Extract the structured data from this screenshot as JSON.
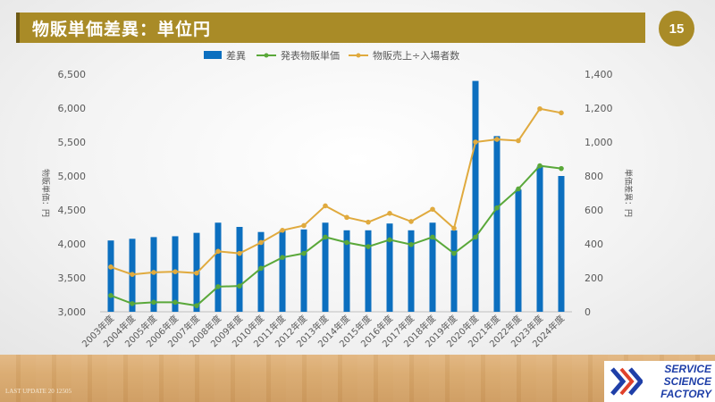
{
  "slide": {
    "title": "物販単価差異：単位円",
    "page_number": "15",
    "update_note": "LAST UPDATE 20 12505",
    "logo": {
      "lines": [
        "SERVICE",
        "SCIENCE",
        "FACTORY"
      ],
      "icon": "sss-logo-icon"
    }
  },
  "colors": {
    "title_bar": "#a98b27",
    "bar": "#0c6fbf",
    "green_line": "#5aa83a",
    "gold_line": "#e0aa3e"
  },
  "chart_data": {
    "type": "bar",
    "legend_position": "top",
    "grid": false,
    "categories": [
      "2003年度",
      "2004年度",
      "2005年度",
      "2006年度",
      "2007年度",
      "2008年度",
      "2009年度",
      "2010年度",
      "2011年度",
      "2012年度",
      "2013年度",
      "2014年度",
      "2015年度",
      "2016年度",
      "2017年度",
      "2018年度",
      "2019年度",
      "2020年度",
      "2021年度",
      "2022年度",
      "2023年度",
      "2024年度"
    ],
    "series": [
      {
        "name": "差異",
        "type": "bar",
        "axis": "right",
        "values": [
          420,
          430,
          440,
          445,
          465,
          525,
          500,
          470,
          480,
          485,
          525,
          480,
          480,
          520,
          480,
          525,
          480,
          1360,
          1035,
          720,
          855,
          800
        ]
      },
      {
        "name": "発表物販単価",
        "type": "line",
        "axis": "left",
        "values": [
          3240,
          3120,
          3140,
          3140,
          3090,
          3370,
          3380,
          3640,
          3800,
          3860,
          4100,
          4020,
          3960,
          4060,
          3990,
          4100,
          3860,
          4100,
          4530,
          4810,
          5150,
          5110
        ]
      },
      {
        "name": "物販売上÷入場者数",
        "type": "line",
        "axis": "left",
        "values": [
          3660,
          3550,
          3580,
          3590,
          3570,
          3890,
          3860,
          4020,
          4200,
          4270,
          4560,
          4390,
          4320,
          4450,
          4330,
          4510,
          4230,
          5500,
          5540,
          5520,
          5990,
          5930
        ]
      }
    ],
    "ylabel_left": "物販単価：円",
    "ylabel_right": "単価差異：円",
    "ylim_left": [
      3000,
      6500
    ],
    "yticks_left": [
      "3,000",
      "3,500",
      "4,000",
      "4,500",
      "5,000",
      "5,500",
      "6,000",
      "6,500"
    ],
    "ylim_right": [
      0,
      1400
    ],
    "yticks_right": [
      "0",
      "200",
      "400",
      "600",
      "800",
      "1,000",
      "1,200",
      "1,400"
    ]
  }
}
